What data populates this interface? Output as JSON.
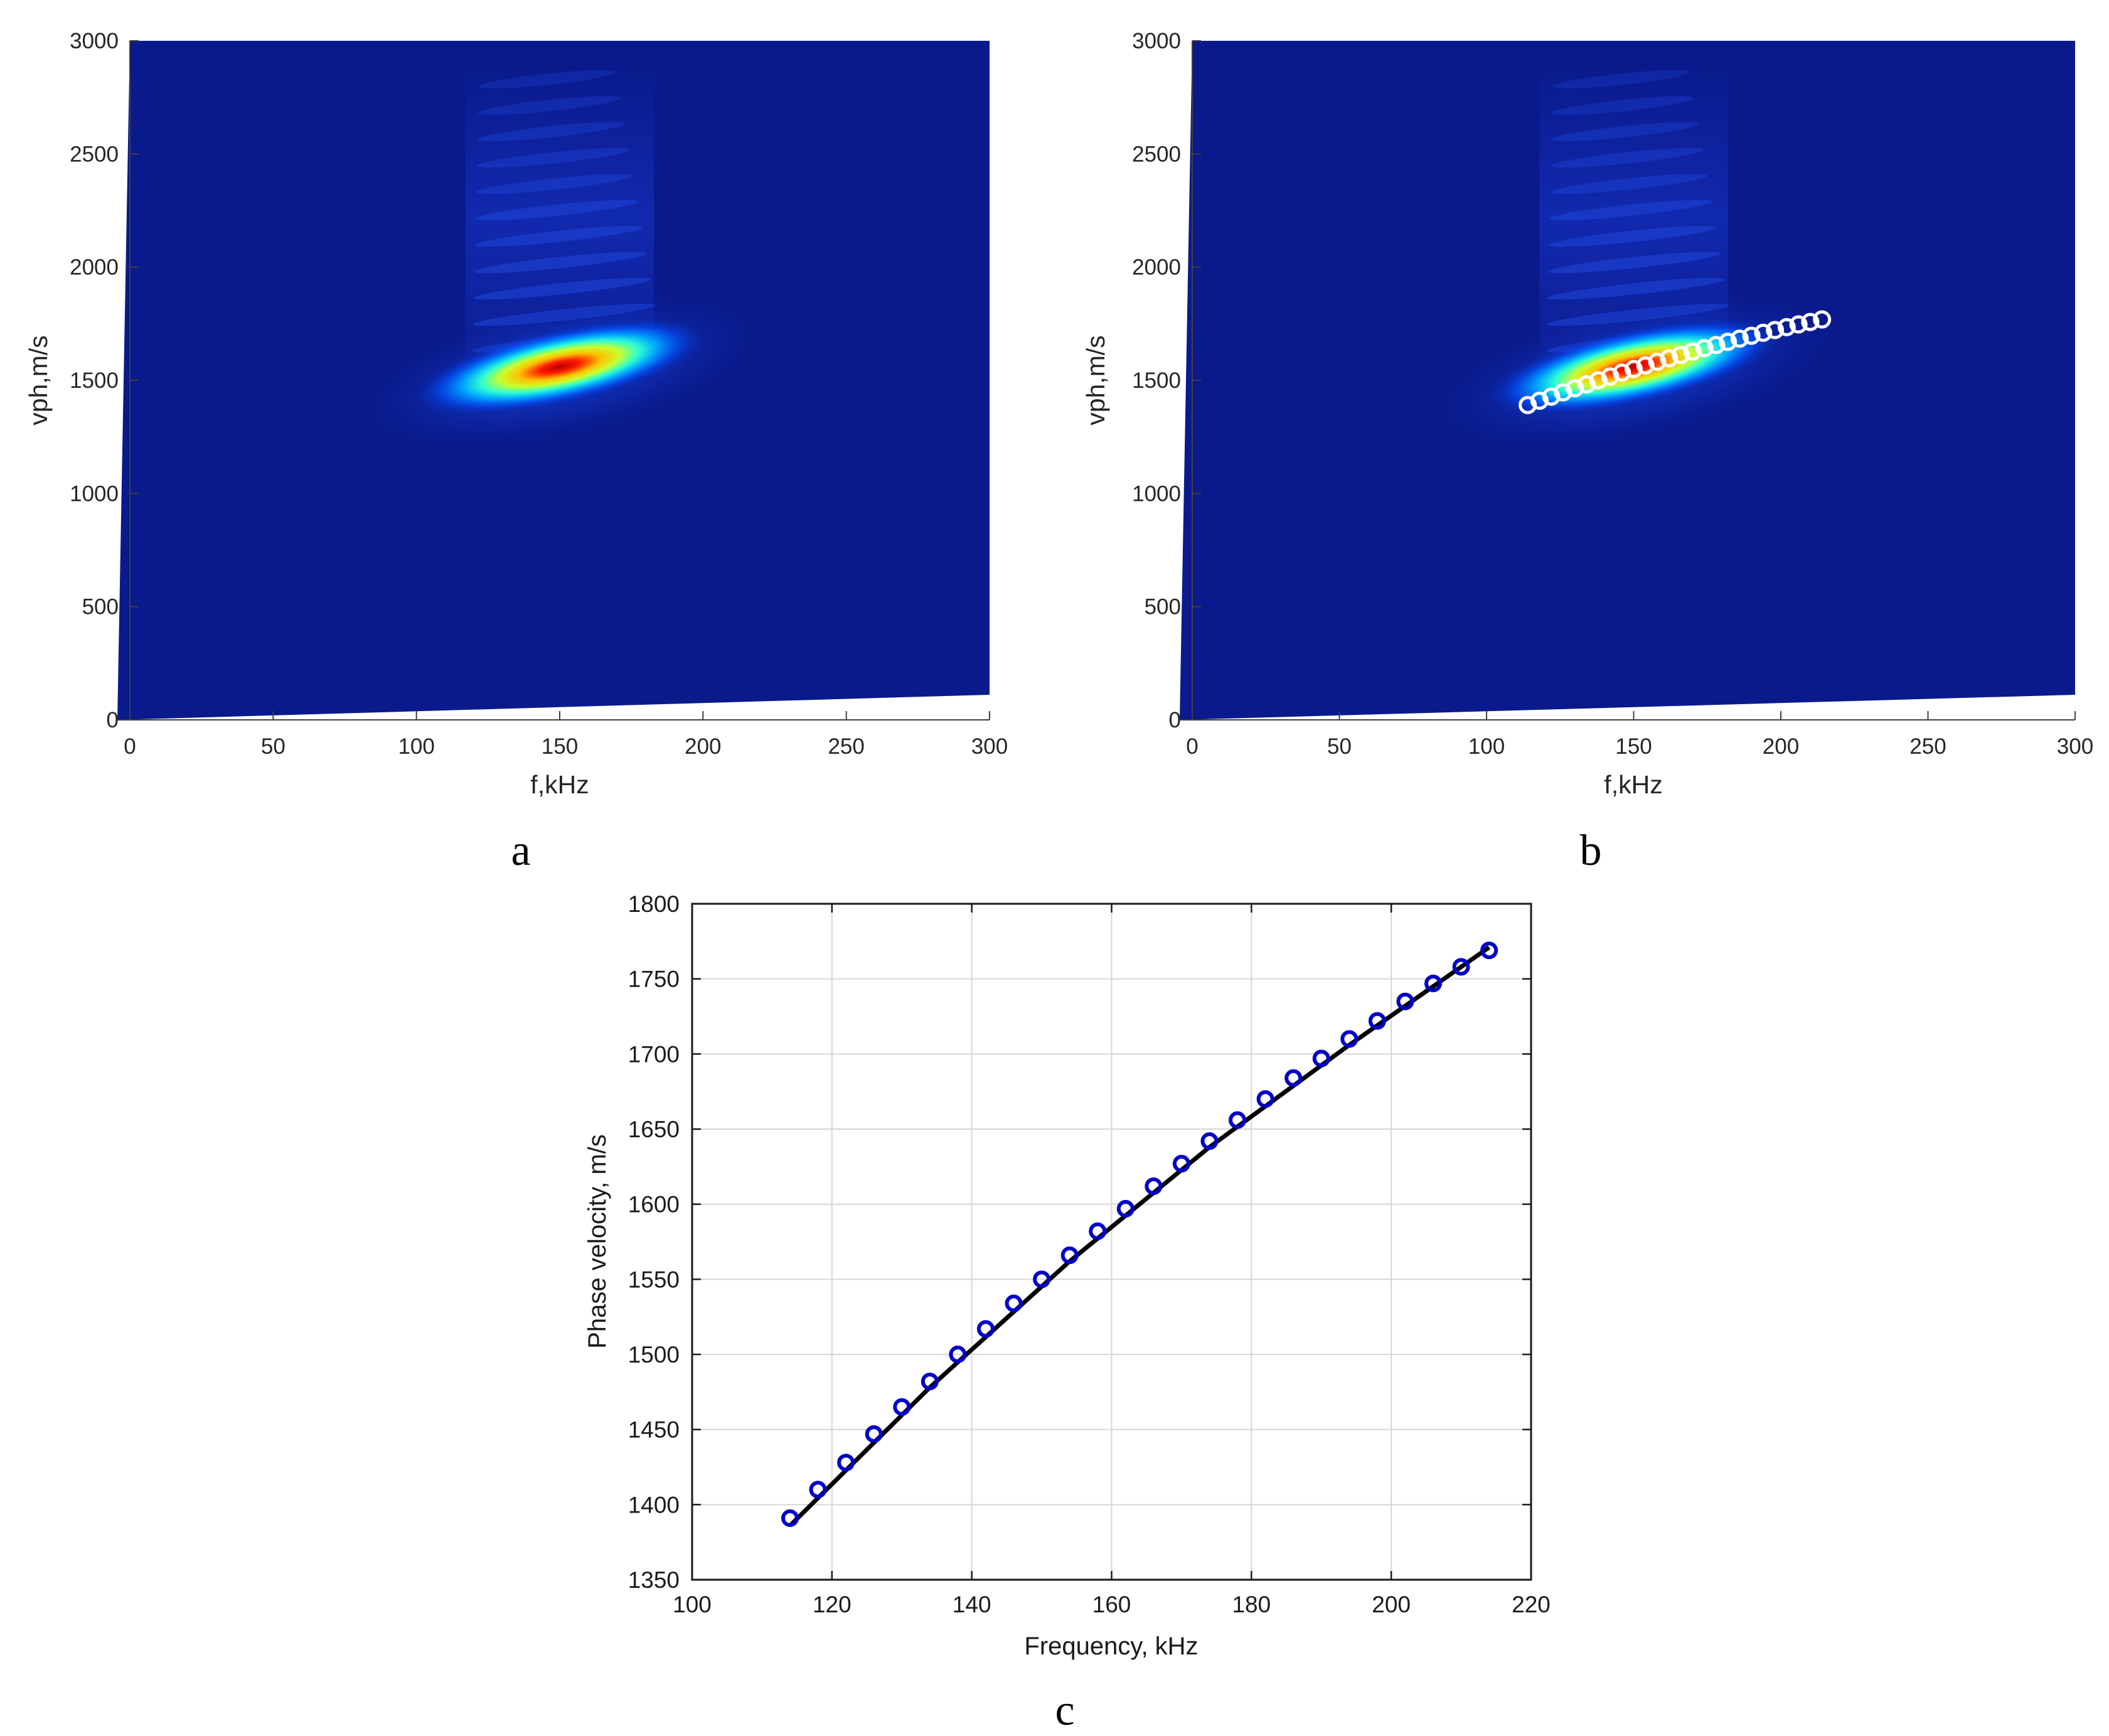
{
  "chart_data": [
    {
      "id": "a",
      "type": "heatmap",
      "panel_label": "a",
      "xlabel": "f,kHz",
      "ylabel": "vph,m/s",
      "xlim": [
        0,
        300
      ],
      "ylim": [
        0,
        3000
      ],
      "xticks": [
        0,
        50,
        100,
        150,
        200,
        250,
        300
      ],
      "yticks": [
        0,
        500,
        1000,
        1500,
        2000,
        2500,
        3000
      ],
      "colormap": "jet",
      "background": "#0a1a8c",
      "peak": {
        "f": 150,
        "vph": 1560
      },
      "ridge": [
        [
          115,
          1390
        ],
        [
          150,
          1560
        ],
        [
          185,
          1680
        ]
      ]
    },
    {
      "id": "b",
      "type": "heatmap",
      "panel_label": "b",
      "xlabel": "f,kHz",
      "ylabel": "vph,m/s",
      "xlim": [
        0,
        300
      ],
      "ylim": [
        0,
        3000
      ],
      "xticks": [
        0,
        50,
        100,
        150,
        200,
        250,
        300
      ],
      "yticks": [
        0,
        500,
        1000,
        1500,
        2000,
        2500,
        3000
      ],
      "colormap": "jet",
      "background": "#0a1a8c",
      "peak": {
        "f": 150,
        "vph": 1560
      },
      "marker_color": "#ffffff",
      "markers": [
        [
          114,
          1391
        ],
        [
          118,
          1410
        ],
        [
          122,
          1428
        ],
        [
          126,
          1447
        ],
        [
          130,
          1465
        ],
        [
          134,
          1482
        ],
        [
          138,
          1500
        ],
        [
          142,
          1517
        ],
        [
          146,
          1534
        ],
        [
          150,
          1550
        ],
        [
          154,
          1566
        ],
        [
          158,
          1582
        ],
        [
          162,
          1597
        ],
        [
          166,
          1612
        ],
        [
          170,
          1627
        ],
        [
          174,
          1642
        ],
        [
          178,
          1656
        ],
        [
          182,
          1670
        ],
        [
          186,
          1684
        ],
        [
          190,
          1697
        ],
        [
          194,
          1710
        ],
        [
          198,
          1722
        ],
        [
          202,
          1735
        ],
        [
          206,
          1747
        ],
        [
          210,
          1758
        ],
        [
          214,
          1769
        ]
      ]
    },
    {
      "id": "c",
      "type": "scatter",
      "panel_label": "c",
      "xlabel": "Frequency, kHz",
      "ylabel": "Phase velocity, m/s",
      "xlim": [
        100,
        220
      ],
      "ylim": [
        1350,
        1800
      ],
      "xticks": [
        100,
        120,
        140,
        160,
        180,
        200,
        220
      ],
      "yticks": [
        1350,
        1400,
        1450,
        1500,
        1550,
        1600,
        1650,
        1700,
        1750,
        1800
      ],
      "grid": true,
      "marker_color": "#0000c8",
      "line_color": "#000000",
      "points": {
        "x": [
          114,
          118,
          122,
          126,
          130,
          134,
          138,
          142,
          146,
          150,
          154,
          158,
          162,
          166,
          170,
          174,
          178,
          182,
          186,
          190,
          194,
          198,
          202,
          206,
          210,
          214
        ],
        "y": [
          1391,
          1410,
          1428,
          1447,
          1465,
          1482,
          1500,
          1517,
          1534,
          1550,
          1566,
          1582,
          1597,
          1612,
          1627,
          1642,
          1656,
          1670,
          1684,
          1697,
          1710,
          1722,
          1735,
          1747,
          1758,
          1769
        ]
      },
      "fit_line": {
        "x": [
          114,
          134,
          154,
          174,
          194,
          214
        ],
        "y": [
          1386,
          1478,
          1562,
          1638,
          1706,
          1771
        ]
      }
    }
  ]
}
